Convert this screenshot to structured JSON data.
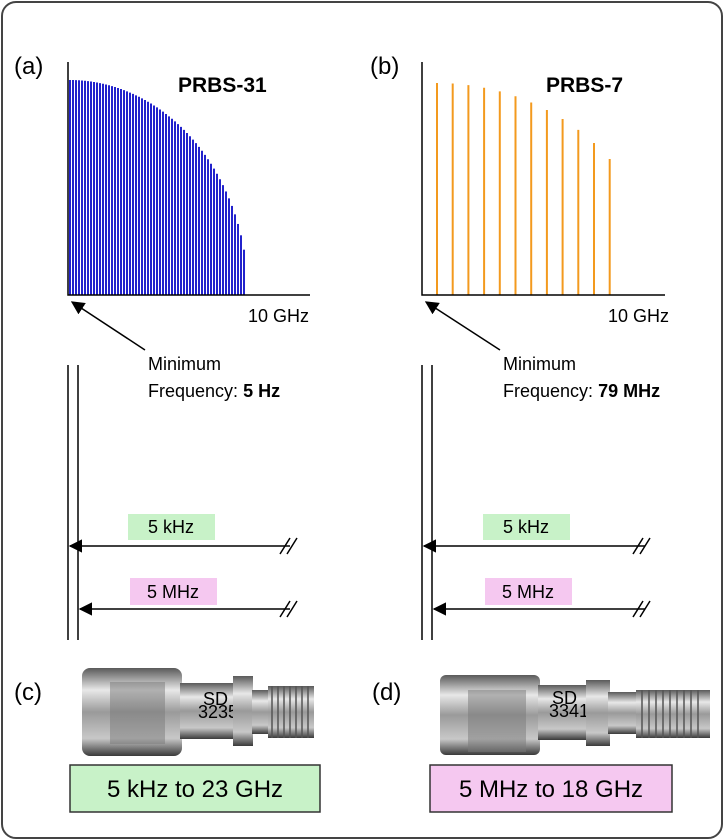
{
  "panels": [
    {
      "label": "(a)",
      "title": "PRBS-31",
      "axis_end": "10 GHz",
      "note_line1": "Minimum",
      "note_line2": "Frequency:",
      "note_value": "5 Hz",
      "cutoffs": [
        "5 kHz",
        "5 MHz"
      ]
    },
    {
      "label": "(b)",
      "title": "PRBS-7",
      "axis_end": "10 GHz",
      "note_line1": "Minimum",
      "note_line2": "Frequency:",
      "note_value": "79 MHz",
      "cutoffs": [
        "5 kHz",
        "5 MHz"
      ]
    }
  ],
  "adapters": [
    {
      "label": "(c)",
      "range": "5 kHz to 23 GHz"
    },
    {
      "label": "(d)",
      "range": "5 MHz to 18 GHz"
    }
  ]
}
